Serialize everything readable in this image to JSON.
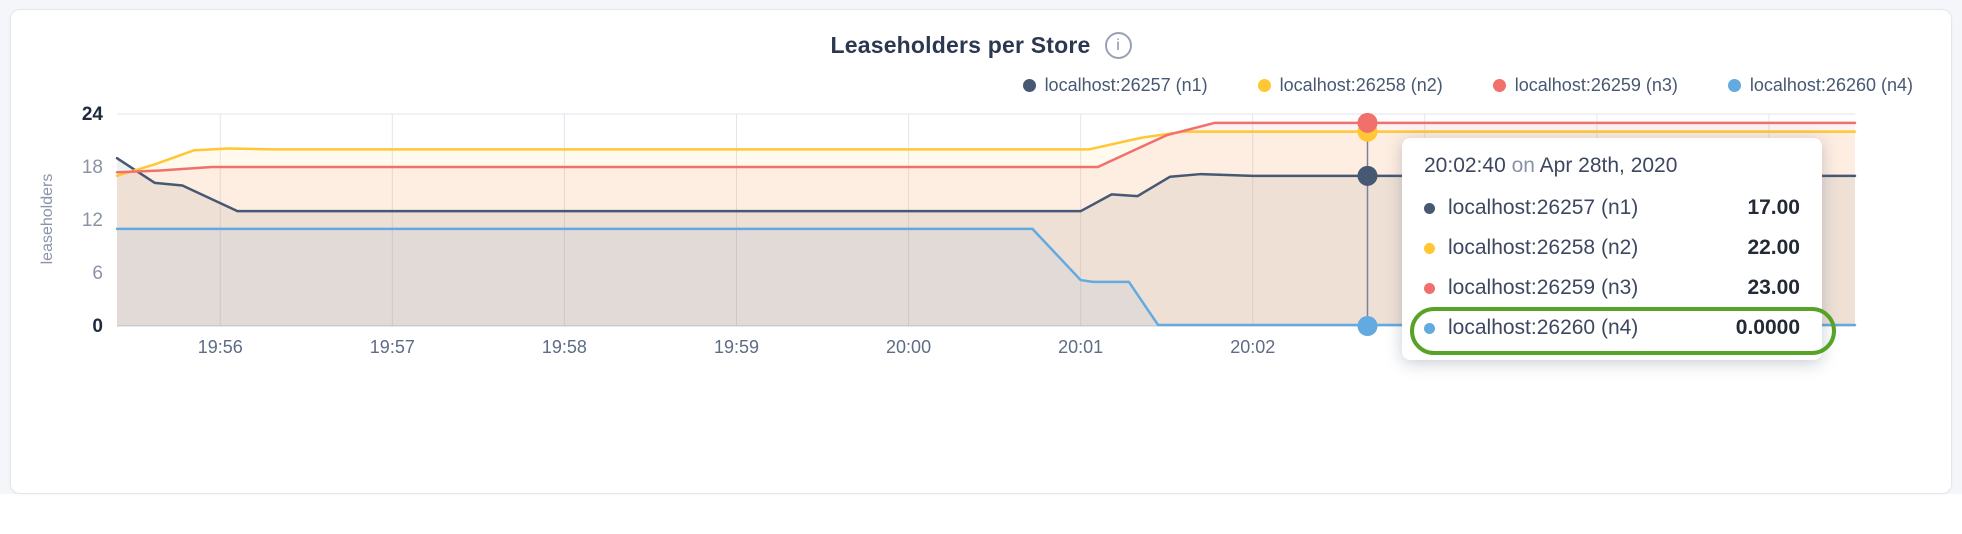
{
  "page": {
    "background": "#f5f6fa",
    "card_background": "#ffffff"
  },
  "header": {
    "info_icon": "i"
  },
  "chart_data": {
    "type": "area",
    "title": "Leaseholders per Store",
    "ylabel": "leaseholders",
    "x_domain": [
      0.4,
      10.5
    ],
    "ylim": [
      0,
      24
    ],
    "y_ticks": [
      0,
      6,
      12,
      18,
      24
    ],
    "x_ticks": [
      {
        "t": 1,
        "label": "19:56"
      },
      {
        "t": 2,
        "label": "19:57"
      },
      {
        "t": 3,
        "label": "19:58"
      },
      {
        "t": 4,
        "label": "19:59"
      },
      {
        "t": 5,
        "label": "20:00"
      },
      {
        "t": 6,
        "label": "20:01"
      },
      {
        "t": 7,
        "label": "20:02"
      },
      {
        "t": 8,
        "label": "20:03"
      },
      {
        "t": 9,
        "label": "20:04"
      },
      {
        "t": 10,
        "label": "20:05"
      }
    ],
    "grid": true,
    "legend_position": "top-right",
    "hover": {
      "t": 7.667,
      "time": "20:02:40",
      "conjunction": "on",
      "date": "Apr 28th, 2020"
    },
    "annotation": {
      "shape": "ellipse",
      "color": "#57a327",
      "target_series": "localhost:26260 (n4)"
    },
    "series": [
      {
        "name": "localhost:26257 (n1)",
        "color": "#475872",
        "hover_value": 17,
        "value_label": "17.00",
        "points": [
          [
            0.4,
            19
          ],
          [
            0.62,
            16.2
          ],
          [
            0.78,
            15.9
          ],
          [
            1.1,
            13
          ],
          [
            6.0,
            13
          ],
          [
            6.18,
            14.9
          ],
          [
            6.33,
            14.7
          ],
          [
            6.52,
            16.9
          ],
          [
            6.7,
            17.2
          ],
          [
            7.0,
            17
          ],
          [
            10.5,
            17
          ]
        ]
      },
      {
        "name": "localhost:26258 (n2)",
        "color": "#ffc733",
        "hover_value": 22,
        "value_label": "22.00",
        "points": [
          [
            0.4,
            17
          ],
          [
            0.62,
            18.3
          ],
          [
            0.85,
            19.9
          ],
          [
            1.05,
            20.1
          ],
          [
            1.3,
            20
          ],
          [
            6.05,
            20
          ],
          [
            6.35,
            21.3
          ],
          [
            6.6,
            22
          ],
          [
            10.5,
            22
          ]
        ]
      },
      {
        "name": "localhost:26259 (n3)",
        "color": "#f2706c",
        "hover_value": 23,
        "value_label": "23.00",
        "points": [
          [
            0.4,
            17.4
          ],
          [
            0.65,
            17.6
          ],
          [
            0.95,
            18
          ],
          [
            6.1,
            18
          ],
          [
            6.5,
            21.6
          ],
          [
            6.78,
            23
          ],
          [
            10.5,
            23
          ]
        ]
      },
      {
        "name": "localhost:26260 (n4)",
        "color": "#62aadf",
        "hover_value": 0,
        "value_label": "0.0000",
        "points": [
          [
            0.4,
            11
          ],
          [
            5.72,
            11
          ],
          [
            6.0,
            5.2
          ],
          [
            6.07,
            5
          ],
          [
            6.28,
            5
          ],
          [
            6.45,
            0.12
          ],
          [
            10.5,
            0.12
          ]
        ]
      }
    ]
  }
}
